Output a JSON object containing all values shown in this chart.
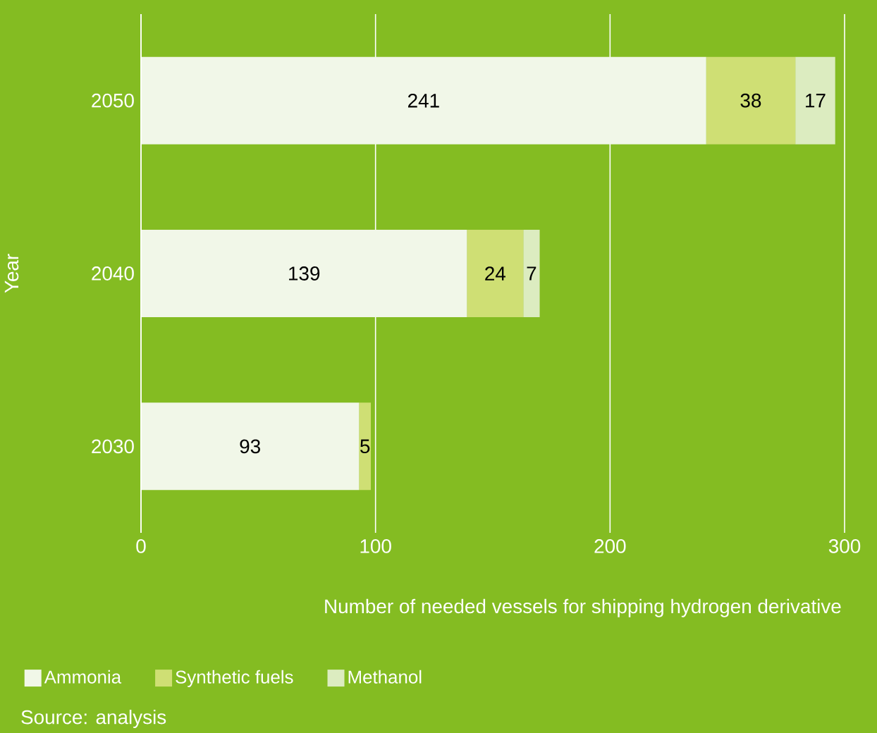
{
  "chart_data": {
    "type": "bar",
    "orientation": "horizontal",
    "stacked": true,
    "xlabel": "Number of needed vessels for shipping hydrogen derivative",
    "ylabel": "Year",
    "categories": [
      "2050",
      "2040",
      "2030"
    ],
    "series": [
      {
        "name": "Ammonia",
        "color": "#f1f7e8",
        "values": [
          241,
          139,
          93
        ]
      },
      {
        "name": "Synthetic fuels",
        "color": "#cfdf74",
        "values": [
          38,
          24,
          5
        ]
      },
      {
        "name": "Methanol",
        "color": "#dcecc0",
        "values": [
          17,
          7,
          null
        ]
      }
    ],
    "xlim": [
      0,
      300
    ],
    "xticks": [
      0,
      100,
      200,
      300
    ],
    "grid": "x",
    "legend": "bottom",
    "data_labels": true,
    "annotations": [
      "Source: analysis"
    ]
  }
}
